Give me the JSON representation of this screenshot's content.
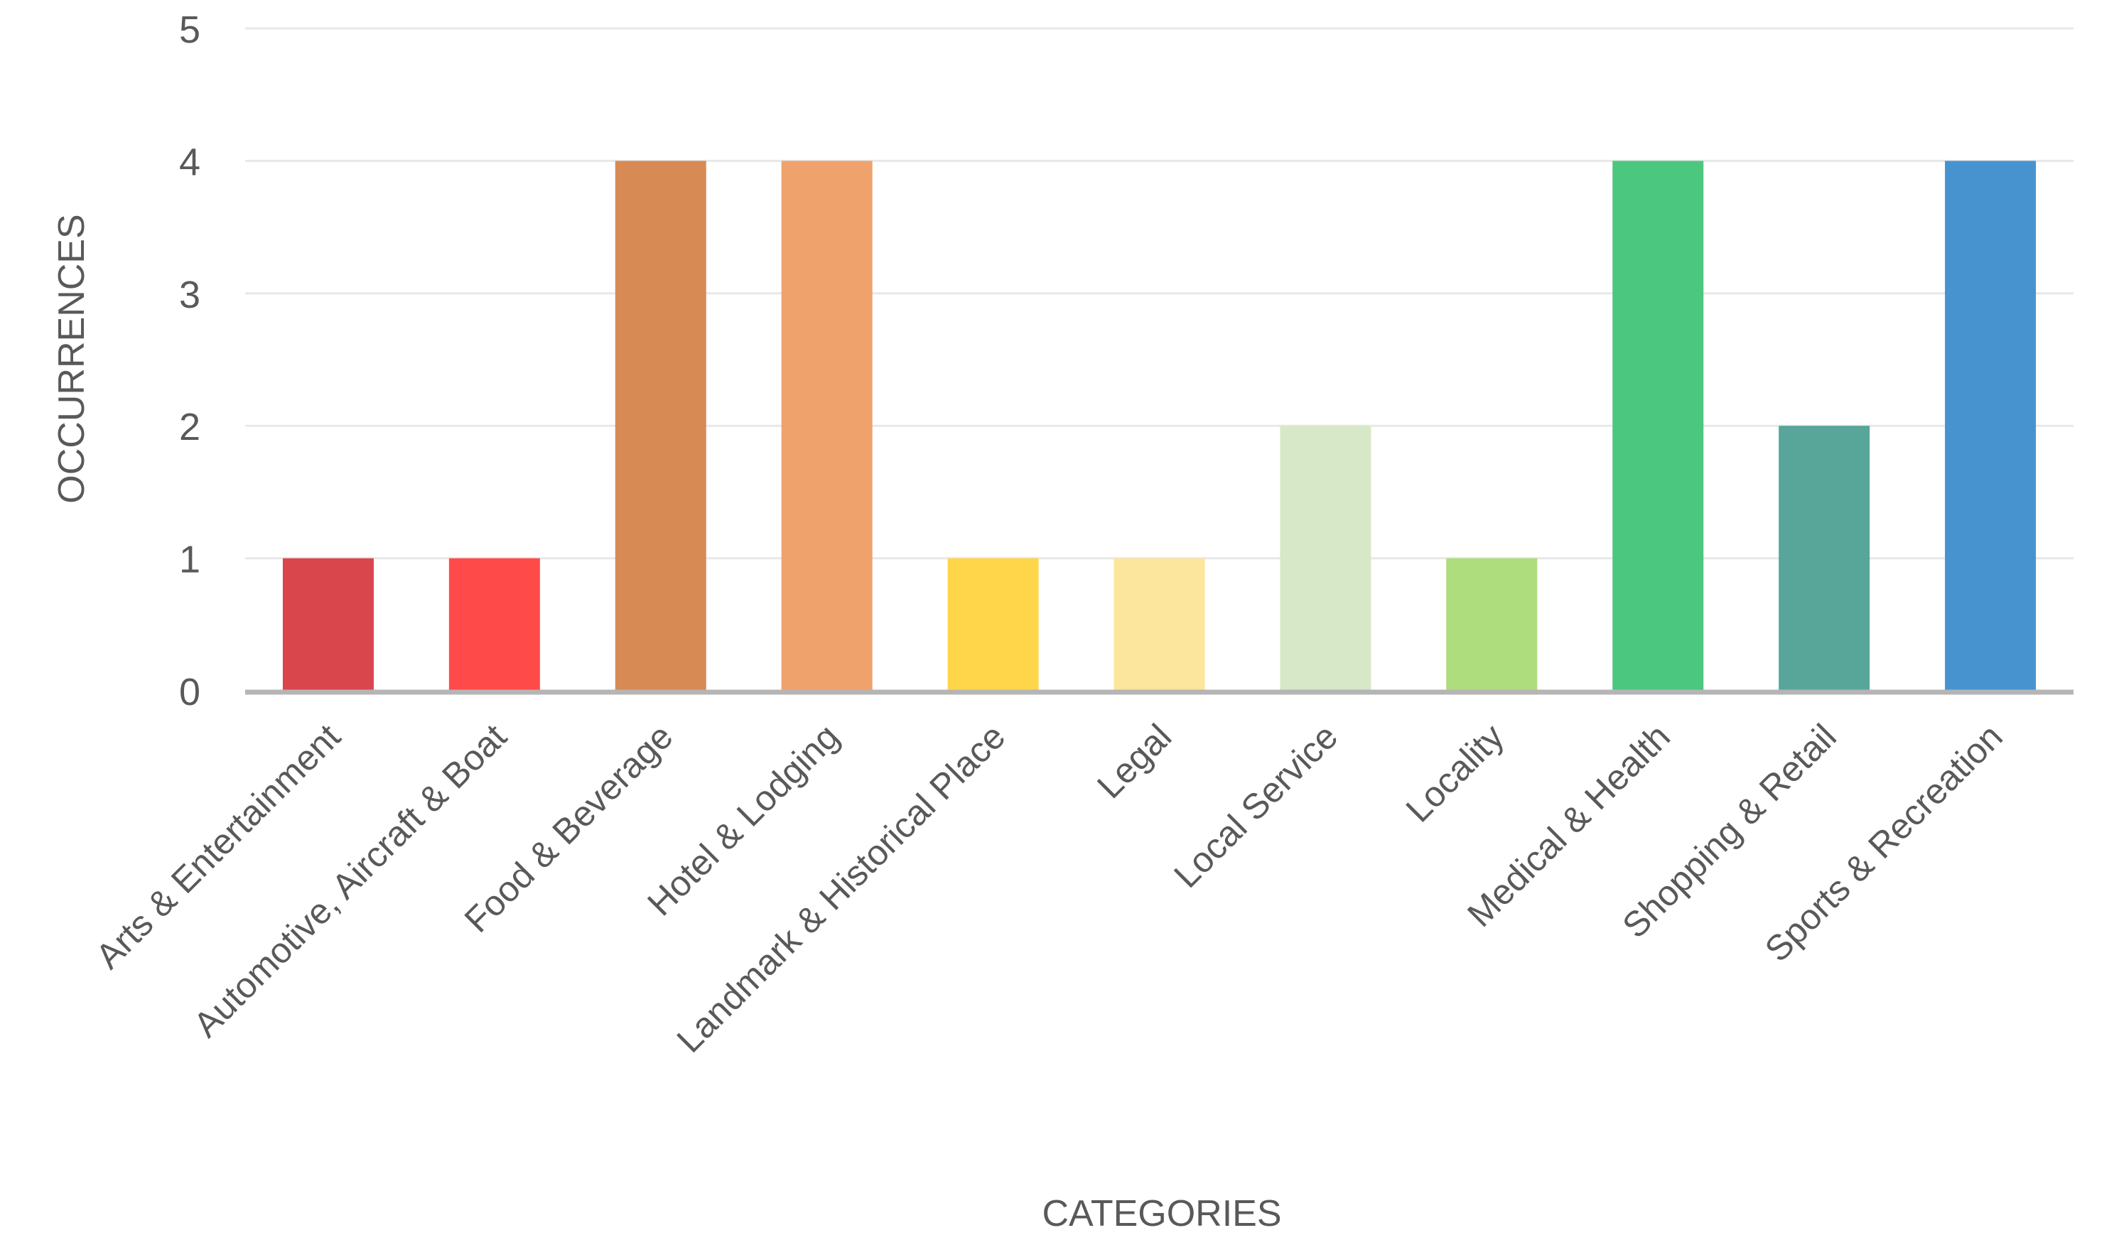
{
  "chart_data": {
    "type": "bar",
    "title": "",
    "xlabel": "CATEGORIES",
    "ylabel": "OCCURRENCES",
    "ylim": [
      0,
      5
    ],
    "yticks": [
      0,
      1,
      2,
      3,
      4,
      5
    ],
    "grid": true,
    "legend": "none",
    "categories": [
      "Arts & Entertainment",
      "Automotive, Aircraft & Boat",
      "Food & Beverage",
      "Hotel & Lodging",
      "Landmark & Historical Place",
      "Legal",
      "Local Service",
      "Locality",
      "Medical & Health",
      "Shopping & Retail",
      "Sports & Recreation"
    ],
    "values": [
      1,
      1,
      4,
      4,
      1,
      1,
      2,
      1,
      4,
      2,
      4
    ],
    "colors": [
      "#d9464c",
      "#ff4a4a",
      "#d88a55",
      "#efa26c",
      "#ffd54a",
      "#fce59c",
      "#d7e8c8",
      "#addd7c",
      "#4cc77f",
      "#58a69a",
      "#4793d0"
    ],
    "gridline_color": "#e8e8e8",
    "axis_color": "#b5b5b5",
    "text_color": "#595959"
  }
}
